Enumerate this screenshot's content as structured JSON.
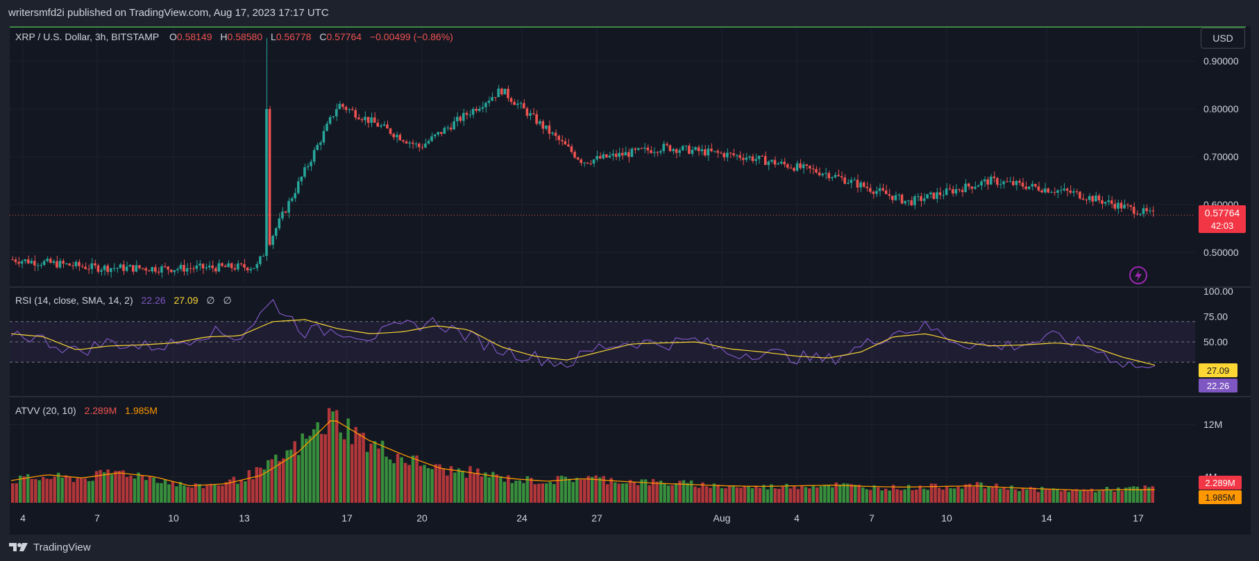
{
  "header": {
    "published_line": "writersmfd2i published on TradingView.com, Aug 17, 2023 17:17 UTC"
  },
  "legend": {
    "symbol": "XRP / U.S. Dollar, 3h, BITSTAMP",
    "o_label": "O",
    "o_value": "0.58149",
    "h_label": "H",
    "h_value": "0.58580",
    "l_label": "L",
    "l_value": "0.56778",
    "c_label": "C",
    "c_value": "0.57764",
    "change": "−0.00499 (−0.86%)"
  },
  "currency": "USD",
  "price_badge": {
    "value": "0.57764",
    "countdown": "42:03"
  },
  "rsi_legend": {
    "label": "RSI (14, close, SMA, 14, 2)",
    "rsi": "22.26",
    "ma": "27.09",
    "x1": "∅",
    "x2": "∅"
  },
  "rsi_badges": {
    "ma": "27.09",
    "rsi": "22.26"
  },
  "atvv_legend": {
    "label": "ATVV (20, 10)",
    "v1": "2.289M",
    "v2": "1.985M"
  },
  "atvv_badges": {
    "v1": "2.289M",
    "v2": "1.985M"
  },
  "footer": {
    "brand": "TradingView"
  },
  "colors": {
    "up": "#26a69a",
    "down": "#ef5350",
    "rsi": "#7e57c2",
    "rsi_ma": "#fdd835",
    "vol_up": "#388e3c",
    "vol_down": "#b2373a",
    "vol_line": "#ff9800",
    "badge_red": "#f23645"
  },
  "chart_data": [
    {
      "type": "line",
      "title": "XRP / U.S. Dollar, 3h, BITSTAMP",
      "x_tick_labels": [
        "4",
        "7",
        "10",
        "13",
        "17",
        "20",
        "24",
        "27",
        "Aug",
        "4",
        "7",
        "10",
        "14",
        "17"
      ],
      "y_tick_labels": [
        "0.90000",
        "0.80000",
        "0.70000",
        "0.60000",
        "0.50000"
      ],
      "ylim": [
        0.43,
        0.97
      ],
      "series": [
        {
          "name": "",
          "x": [
            "Jul 4",
            "Jul 7",
            "Jul 10",
            "Jul 13",
            "Jul 14",
            "Jul 17",
            "Jul 20",
            "Jul 24",
            "Jul 27",
            "Aug 1",
            "Aug 4",
            "Aug 7",
            "Aug 10",
            "Aug 14",
            "Aug 17"
          ],
          "values": [
            0.485,
            0.468,
            0.466,
            0.47,
            0.81,
            0.72,
            0.84,
            0.69,
            0.72,
            0.7,
            0.665,
            0.605,
            0.65,
            0.625,
            0.578
          ]
        }
      ],
      "last_price": 0.57764,
      "grid": true
    },
    {
      "type": "line",
      "title": "RSI (14, close, SMA, 14, 2)",
      "y_tick_labels": [
        "100.00",
        "75.00",
        "50.00"
      ],
      "ylim": [
        0,
        100
      ],
      "bands": [
        70,
        50,
        30
      ],
      "series": [
        {
          "name": "",
          "values": [
            60,
            52,
            40,
            50,
            45,
            48,
            60,
            55,
            90,
            60,
            62,
            55,
            65,
            70,
            55,
            42,
            35,
            28,
            45,
            50,
            48,
            52,
            38,
            40,
            35,
            32,
            45,
            60,
            65,
            50,
            45,
            48,
            55,
            45,
            30,
            22
          ]
        },
        {
          "name": "",
          "values": [
            58,
            55,
            42,
            46,
            47,
            49,
            55,
            56,
            70,
            72,
            63,
            58,
            60,
            66,
            62,
            45,
            36,
            32,
            40,
            48,
            49,
            50,
            43,
            40,
            36,
            34,
            40,
            55,
            58,
            50,
            46,
            47,
            49,
            46,
            35,
            27
          ]
        }
      ],
      "last": {
        "rsi": 22.26,
        "ma": 27.09
      }
    },
    {
      "type": "bar",
      "title": "ATVV (20, 10)",
      "y_tick_labels": [
        "12M",
        "4M"
      ],
      "ylim": [
        0,
        15
      ],
      "series": [
        {
          "name": "",
          "values": [
            3.5,
            3.9,
            3.7,
            4.8,
            3.8,
            2.4,
            3.0,
            4.9,
            8.5,
            13.2,
            9.0,
            6.8,
            5.1,
            4.6,
            3.6,
            3.3,
            3.9,
            3.4,
            3.1,
            2.9,
            2.5,
            2.4,
            2.6,
            2.8,
            2.4,
            2.3,
            2.5,
            2.7,
            2.3,
            2.0,
            1.9,
            2.1,
            2.289
          ]
        },
        {
          "name": "",
          "values": [
            3.4,
            4.3,
            3.8,
            4.6,
            4.0,
            2.6,
            2.9,
            4.2,
            7.6,
            12.9,
            9.6,
            7.3,
            5.3,
            4.5,
            3.7,
            3.3,
            3.7,
            3.3,
            3.0,
            2.8,
            2.6,
            2.5,
            2.6,
            2.7,
            2.5,
            2.4,
            2.5,
            2.6,
            2.3,
            2.1,
            1.9,
            2.0,
            1.985
          ]
        }
      ],
      "last": {
        "v1": 2.289,
        "v2": 1.985
      }
    }
  ]
}
